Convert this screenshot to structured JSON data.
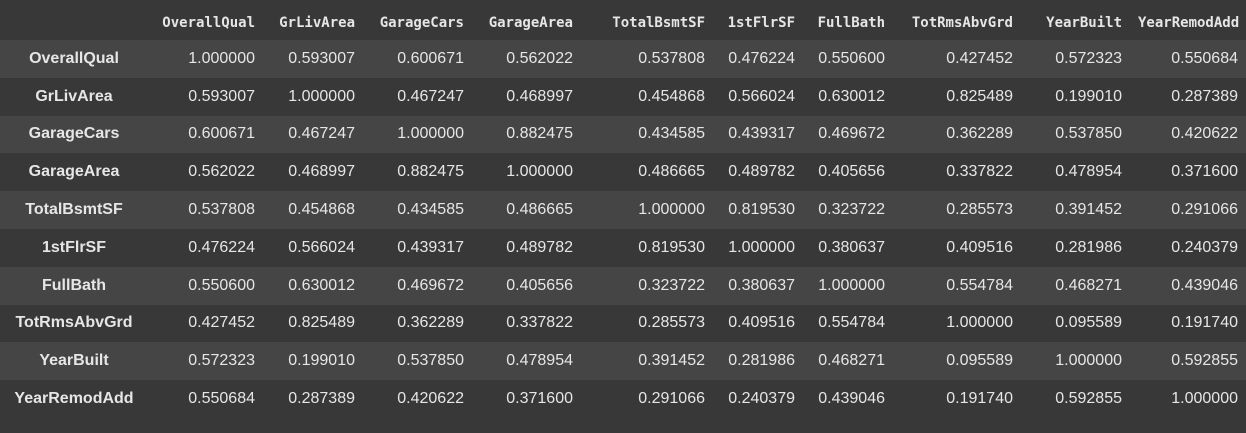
{
  "dataframe": {
    "columns": [
      "OverallQual",
      "GrLivArea",
      "GarageCars",
      "GarageArea",
      "TotalBsmtSF",
      "1stFlrSF",
      "FullBath",
      "TotRmsAbvGrd",
      "YearBuilt",
      "YearRemodAdd"
    ],
    "rows": [
      {
        "index": "OverallQual",
        "values": [
          "1.000000",
          "0.593007",
          "0.600671",
          "0.562022",
          "0.537808",
          "0.476224",
          "0.550600",
          "0.427452",
          "0.572323",
          "0.550684"
        ]
      },
      {
        "index": "GrLivArea",
        "values": [
          "0.593007",
          "1.000000",
          "0.467247",
          "0.468997",
          "0.454868",
          "0.566024",
          "0.630012",
          "0.825489",
          "0.199010",
          "0.287389"
        ]
      },
      {
        "index": "GarageCars",
        "values": [
          "0.600671",
          "0.467247",
          "1.000000",
          "0.882475",
          "0.434585",
          "0.439317",
          "0.469672",
          "0.362289",
          "0.537850",
          "0.420622"
        ]
      },
      {
        "index": "GarageArea",
        "values": [
          "0.562022",
          "0.468997",
          "0.882475",
          "1.000000",
          "0.486665",
          "0.489782",
          "0.405656",
          "0.337822",
          "0.478954",
          "0.371600"
        ]
      },
      {
        "index": "TotalBsmtSF",
        "values": [
          "0.537808",
          "0.454868",
          "0.434585",
          "0.486665",
          "1.000000",
          "0.819530",
          "0.323722",
          "0.285573",
          "0.391452",
          "0.291066"
        ]
      },
      {
        "index": "1stFlrSF",
        "values": [
          "0.476224",
          "0.566024",
          "0.439317",
          "0.489782",
          "0.819530",
          "1.000000",
          "0.380637",
          "0.409516",
          "0.281986",
          "0.240379"
        ]
      },
      {
        "index": "FullBath",
        "values": [
          "0.550600",
          "0.630012",
          "0.469672",
          "0.405656",
          "0.323722",
          "0.380637",
          "1.000000",
          "0.554784",
          "0.468271",
          "0.439046"
        ]
      },
      {
        "index": "TotRmsAbvGrd",
        "values": [
          "0.427452",
          "0.825489",
          "0.362289",
          "0.337822",
          "0.285573",
          "0.409516",
          "0.554784",
          "1.000000",
          "0.095589",
          "0.191740"
        ]
      },
      {
        "index": "YearBuilt",
        "values": [
          "0.572323",
          "0.199010",
          "0.537850",
          "0.478954",
          "0.391452",
          "0.281986",
          "0.468271",
          "0.095589",
          "1.000000",
          "0.592855"
        ]
      },
      {
        "index": "YearRemodAdd",
        "values": [
          "0.550684",
          "0.287389",
          "0.420622",
          "0.371600",
          "0.291066",
          "0.240379",
          "0.439046",
          "0.191740",
          "0.592855",
          "1.000000"
        ]
      }
    ]
  },
  "colors": {
    "background": "#383838",
    "row_stripe": "#454545",
    "text": "#e6e6e6"
  }
}
